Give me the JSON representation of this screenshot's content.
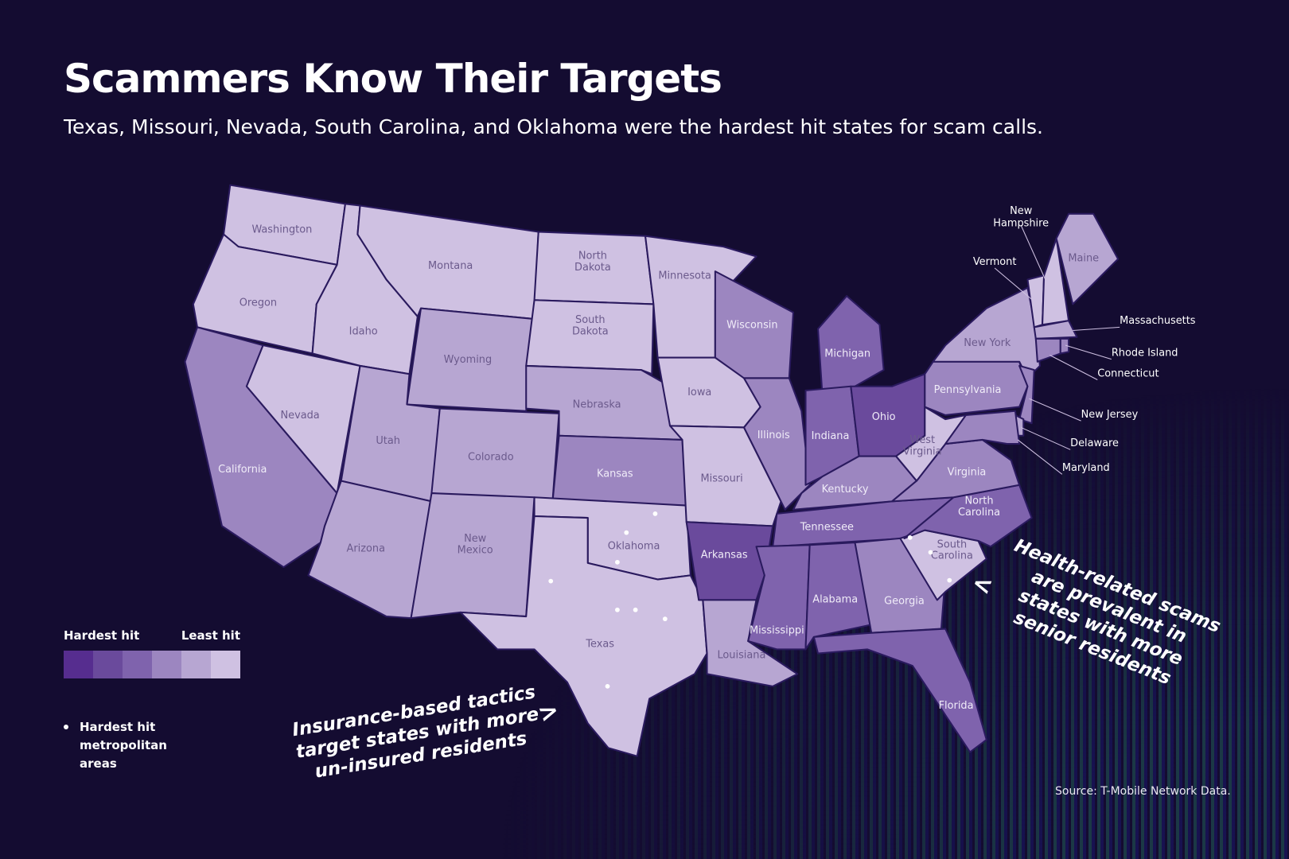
{
  "title": "Scammers Know Their Targets",
  "subtitle": "Texas, Missouri, Nevada, South Carolina, and Oklahoma were the hardest hit states for scam calls.",
  "legend": {
    "hardest_label": "Hardest hit",
    "least_label": "Least hit",
    "scale_colors": [
      "#562d8f",
      "#6a4a9c",
      "#7f63ad",
      "#9c86c0",
      "#b7a6d2",
      "#cfc1e2"
    ],
    "metro_label": "Hardest hit metropolitan areas"
  },
  "colors": {
    "background": "#140c31",
    "state_border": "#2a1a5e"
  },
  "states": [
    {
      "name": "Washington",
      "level": 6
    },
    {
      "name": "Oregon",
      "level": 6
    },
    {
      "name": "California",
      "level": 4
    },
    {
      "name": "Nevada",
      "level": 6
    },
    {
      "name": "Idaho",
      "level": 6
    },
    {
      "name": "Montana",
      "level": 6
    },
    {
      "name": "Wyoming",
      "level": 5
    },
    {
      "name": "Utah",
      "level": 5
    },
    {
      "name": "Arizona",
      "level": 5
    },
    {
      "name": "Colorado",
      "level": 5
    },
    {
      "name": "New Mexico",
      "level": 5
    },
    {
      "name": "North Dakota",
      "level": 6
    },
    {
      "name": "South Dakota",
      "level": 6
    },
    {
      "name": "Nebraska",
      "level": 5
    },
    {
      "name": "Kansas",
      "level": 4
    },
    {
      "name": "Oklahoma",
      "level": 6
    },
    {
      "name": "Texas",
      "level": 6
    },
    {
      "name": "Minnesota",
      "level": 6
    },
    {
      "name": "Iowa",
      "level": 6
    },
    {
      "name": "Missouri",
      "level": 6
    },
    {
      "name": "Arkansas",
      "level": 2
    },
    {
      "name": "Louisiana",
      "level": 5
    },
    {
      "name": "Wisconsin",
      "level": 4
    },
    {
      "name": "Illinois",
      "level": 4
    },
    {
      "name": "Michigan",
      "level": 3
    },
    {
      "name": "Indiana",
      "level": 3
    },
    {
      "name": "Ohio",
      "level": 2
    },
    {
      "name": "Kentucky",
      "level": 4
    },
    {
      "name": "Tennessee",
      "level": 3
    },
    {
      "name": "Mississippi",
      "level": 3
    },
    {
      "name": "Alabama",
      "level": 3
    },
    {
      "name": "Georgia",
      "level": 4
    },
    {
      "name": "Florida",
      "level": 3
    },
    {
      "name": "South Carolina",
      "level": 6
    },
    {
      "name": "North Carolina",
      "level": 3
    },
    {
      "name": "Virginia",
      "level": 4
    },
    {
      "name": "West Virginia",
      "level": 6
    },
    {
      "name": "Pennsylvania",
      "level": 4
    },
    {
      "name": "New York",
      "level": 5
    },
    {
      "name": "Vermont",
      "level": 6
    },
    {
      "name": "New Hampshire",
      "level": 6
    },
    {
      "name": "Maine",
      "level": 5
    },
    {
      "name": "Massachusetts",
      "level": 5
    },
    {
      "name": "Connecticut",
      "level": 4
    },
    {
      "name": "Rhode Island",
      "level": 4
    },
    {
      "name": "New Jersey",
      "level": 4
    },
    {
      "name": "Delaware",
      "level": 5
    },
    {
      "name": "Maryland",
      "level": 4
    }
  ],
  "annotations": {
    "insurance": "Insurance-based tactics\ntarget states with more\nun-insured residents",
    "health": "Health-related scams\nare prevalent in\nstates with more\nsenior residents"
  },
  "source": "Source: T-Mobile Network Data."
}
